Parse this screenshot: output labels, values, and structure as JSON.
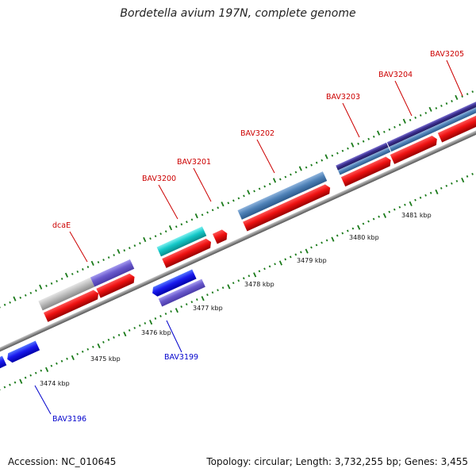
{
  "title": "Bordetella avium 197N, complete genome",
  "footer": {
    "accession": "Accession: NC_010645",
    "summary": "Topology: circular; Length: 3,732,255 bp; Genes: 3,455"
  },
  "colors": {
    "forward_label": "#cc0000",
    "reverse_label": "#0000cc",
    "tick": "#1a7a1a",
    "cds": "#ee1111",
    "backbone": "#888888"
  },
  "scale_labels": [
    {
      "name": "3474 kbp"
    },
    {
      "name": "3475 kbp"
    },
    {
      "name": "3476 kbp"
    },
    {
      "name": "3477 kbp"
    },
    {
      "name": "3478 kbp"
    },
    {
      "name": "3479 kbp"
    },
    {
      "name": "3480 kbp"
    },
    {
      "name": "3481 kbp"
    }
  ],
  "gene_labels": [
    {
      "name": "dcaE",
      "strand": "forward"
    },
    {
      "name": "BAV3200",
      "strand": "forward"
    },
    {
      "name": "BAV3201",
      "strand": "forward"
    },
    {
      "name": "BAV3202",
      "strand": "forward"
    },
    {
      "name": "BAV3203",
      "strand": "forward"
    },
    {
      "name": "BAV3204",
      "strand": "forward"
    },
    {
      "name": "BAV3205",
      "strand": "forward"
    },
    {
      "name": "BAV3199",
      "strand": "reverse"
    },
    {
      "name": "BAV3196",
      "strand": "reverse"
    }
  ]
}
